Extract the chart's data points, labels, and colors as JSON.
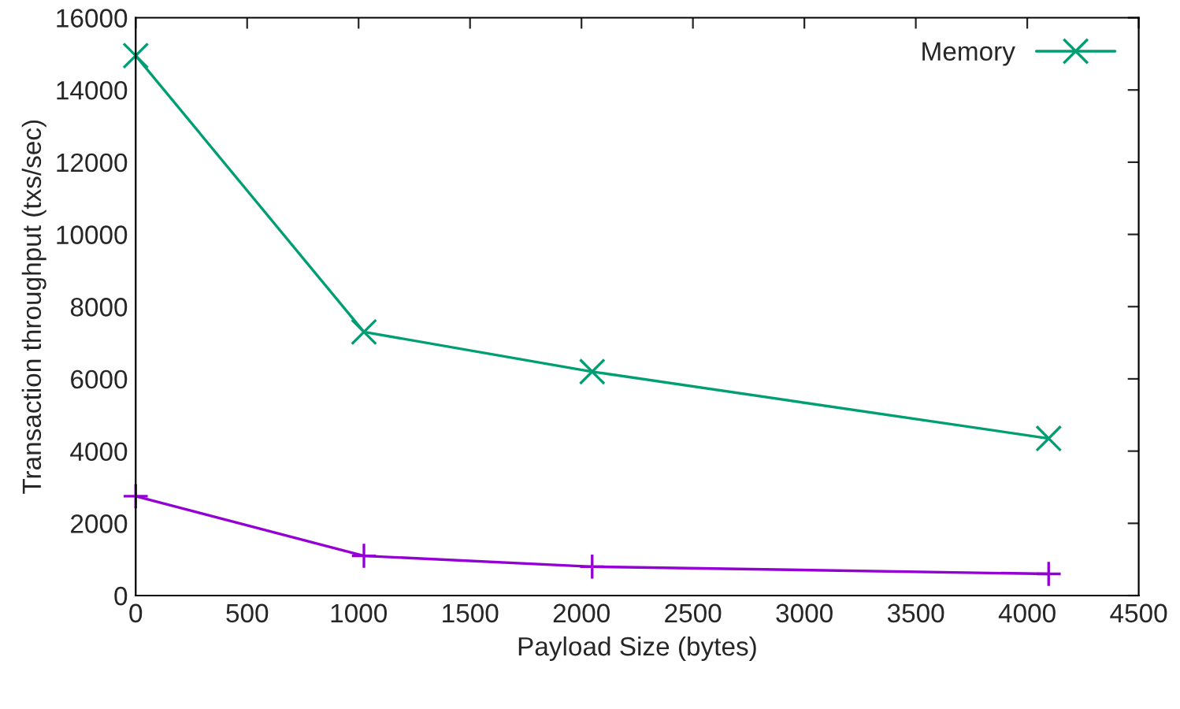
{
  "chart_data": {
    "type": "line",
    "xlabel": "Payload Size (bytes)",
    "ylabel": "Transaction throughput (txs/sec)",
    "x": [
      0,
      1024,
      2048,
      4096
    ],
    "series": [
      {
        "color": "#9400d3",
        "marker": "plus",
        "values": [
          2750,
          1100,
          800,
          600
        ]
      },
      {
        "name": "Memory",
        "color": "#009e73",
        "marker": "cross",
        "values": [
          14950,
          7300,
          6200,
          4350
        ]
      }
    ],
    "xlim": [
      0,
      4500
    ],
    "xticks": [
      0,
      500,
      1000,
      1500,
      2000,
      2500,
      3000,
      3500,
      4000,
      4500
    ],
    "ylim": [
      0,
      16000
    ],
    "yticks": [
      0,
      2000,
      4000,
      6000,
      8000,
      10000,
      12000,
      14000,
      16000
    ],
    "grid": false,
    "legend": "top right"
  }
}
